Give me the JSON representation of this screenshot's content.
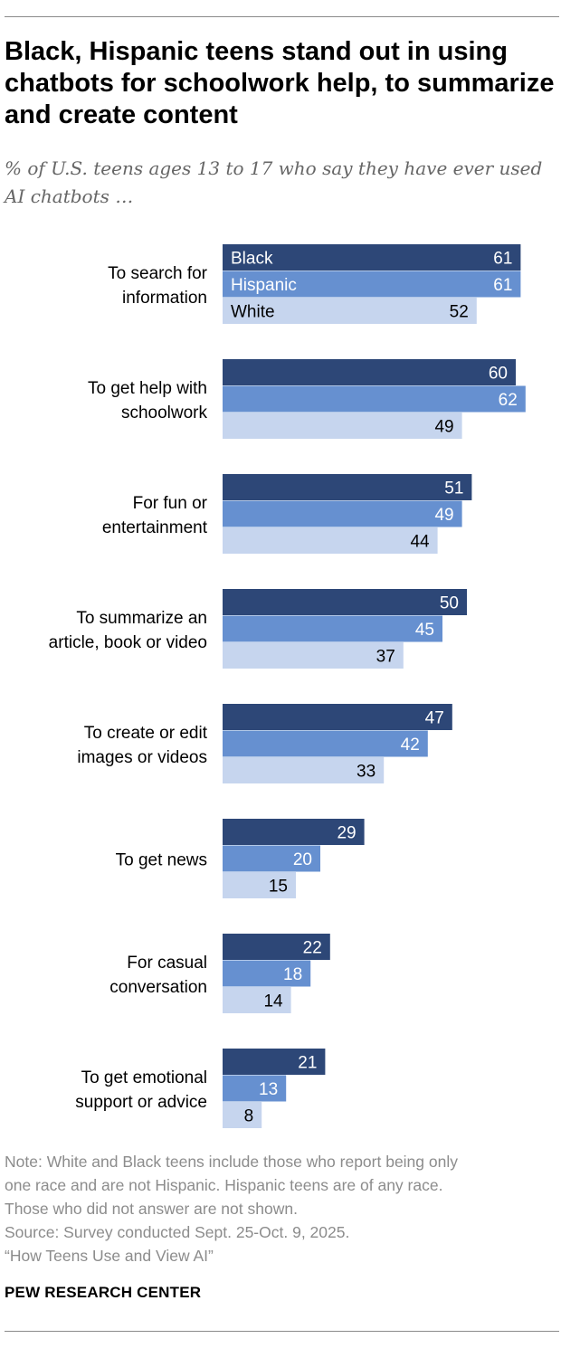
{
  "title": "Black, Hispanic teens stand out in using chatbots for schoolwork help, to summarize and create content",
  "subtitle": "% of U.S. teens ages 13 to 17 who say they have ever used AI chatbots …",
  "chart_data": {
    "type": "bar",
    "orientation": "horizontal",
    "categories": [
      [
        "To search for",
        "information"
      ],
      [
        "To get help with",
        "schoolwork"
      ],
      [
        "For fun or",
        "entertainment"
      ],
      [
        "To summarize an",
        "article, book or video"
      ],
      [
        "To create or edit",
        "images or videos"
      ],
      [
        "To get news"
      ],
      [
        "For casual",
        "conversation"
      ],
      [
        "To get emotional",
        "support or advice"
      ]
    ],
    "series": [
      {
        "name": "Black",
        "color": "#2d4777",
        "label_color": "#ffffff",
        "values": [
          61,
          60,
          51,
          50,
          47,
          29,
          22,
          21
        ]
      },
      {
        "name": "Hispanic",
        "color": "#6690d0",
        "label_color": "#ffffff",
        "values": [
          61,
          62,
          49,
          45,
          42,
          20,
          18,
          13
        ]
      },
      {
        "name": "White",
        "color": "#c6d5ee",
        "label_color": "#000000",
        "values": [
          52,
          49,
          44,
          37,
          33,
          15,
          14,
          8
        ]
      }
    ],
    "xlim": [
      0,
      100
    ],
    "legend": "inline in first group",
    "grid": false
  },
  "note_lines": [
    "Note: White and Black teens include those who report being only",
    "one race and are not Hispanic. Hispanic teens are of any race.",
    "Those who did not answer are not shown."
  ],
  "source_lines": [
    "Source: Survey conducted Sept. 25-Oct. 9, 2025.",
    "“How Teens Use and View AI”"
  ],
  "brand": "PEW RESEARCH CENTER"
}
